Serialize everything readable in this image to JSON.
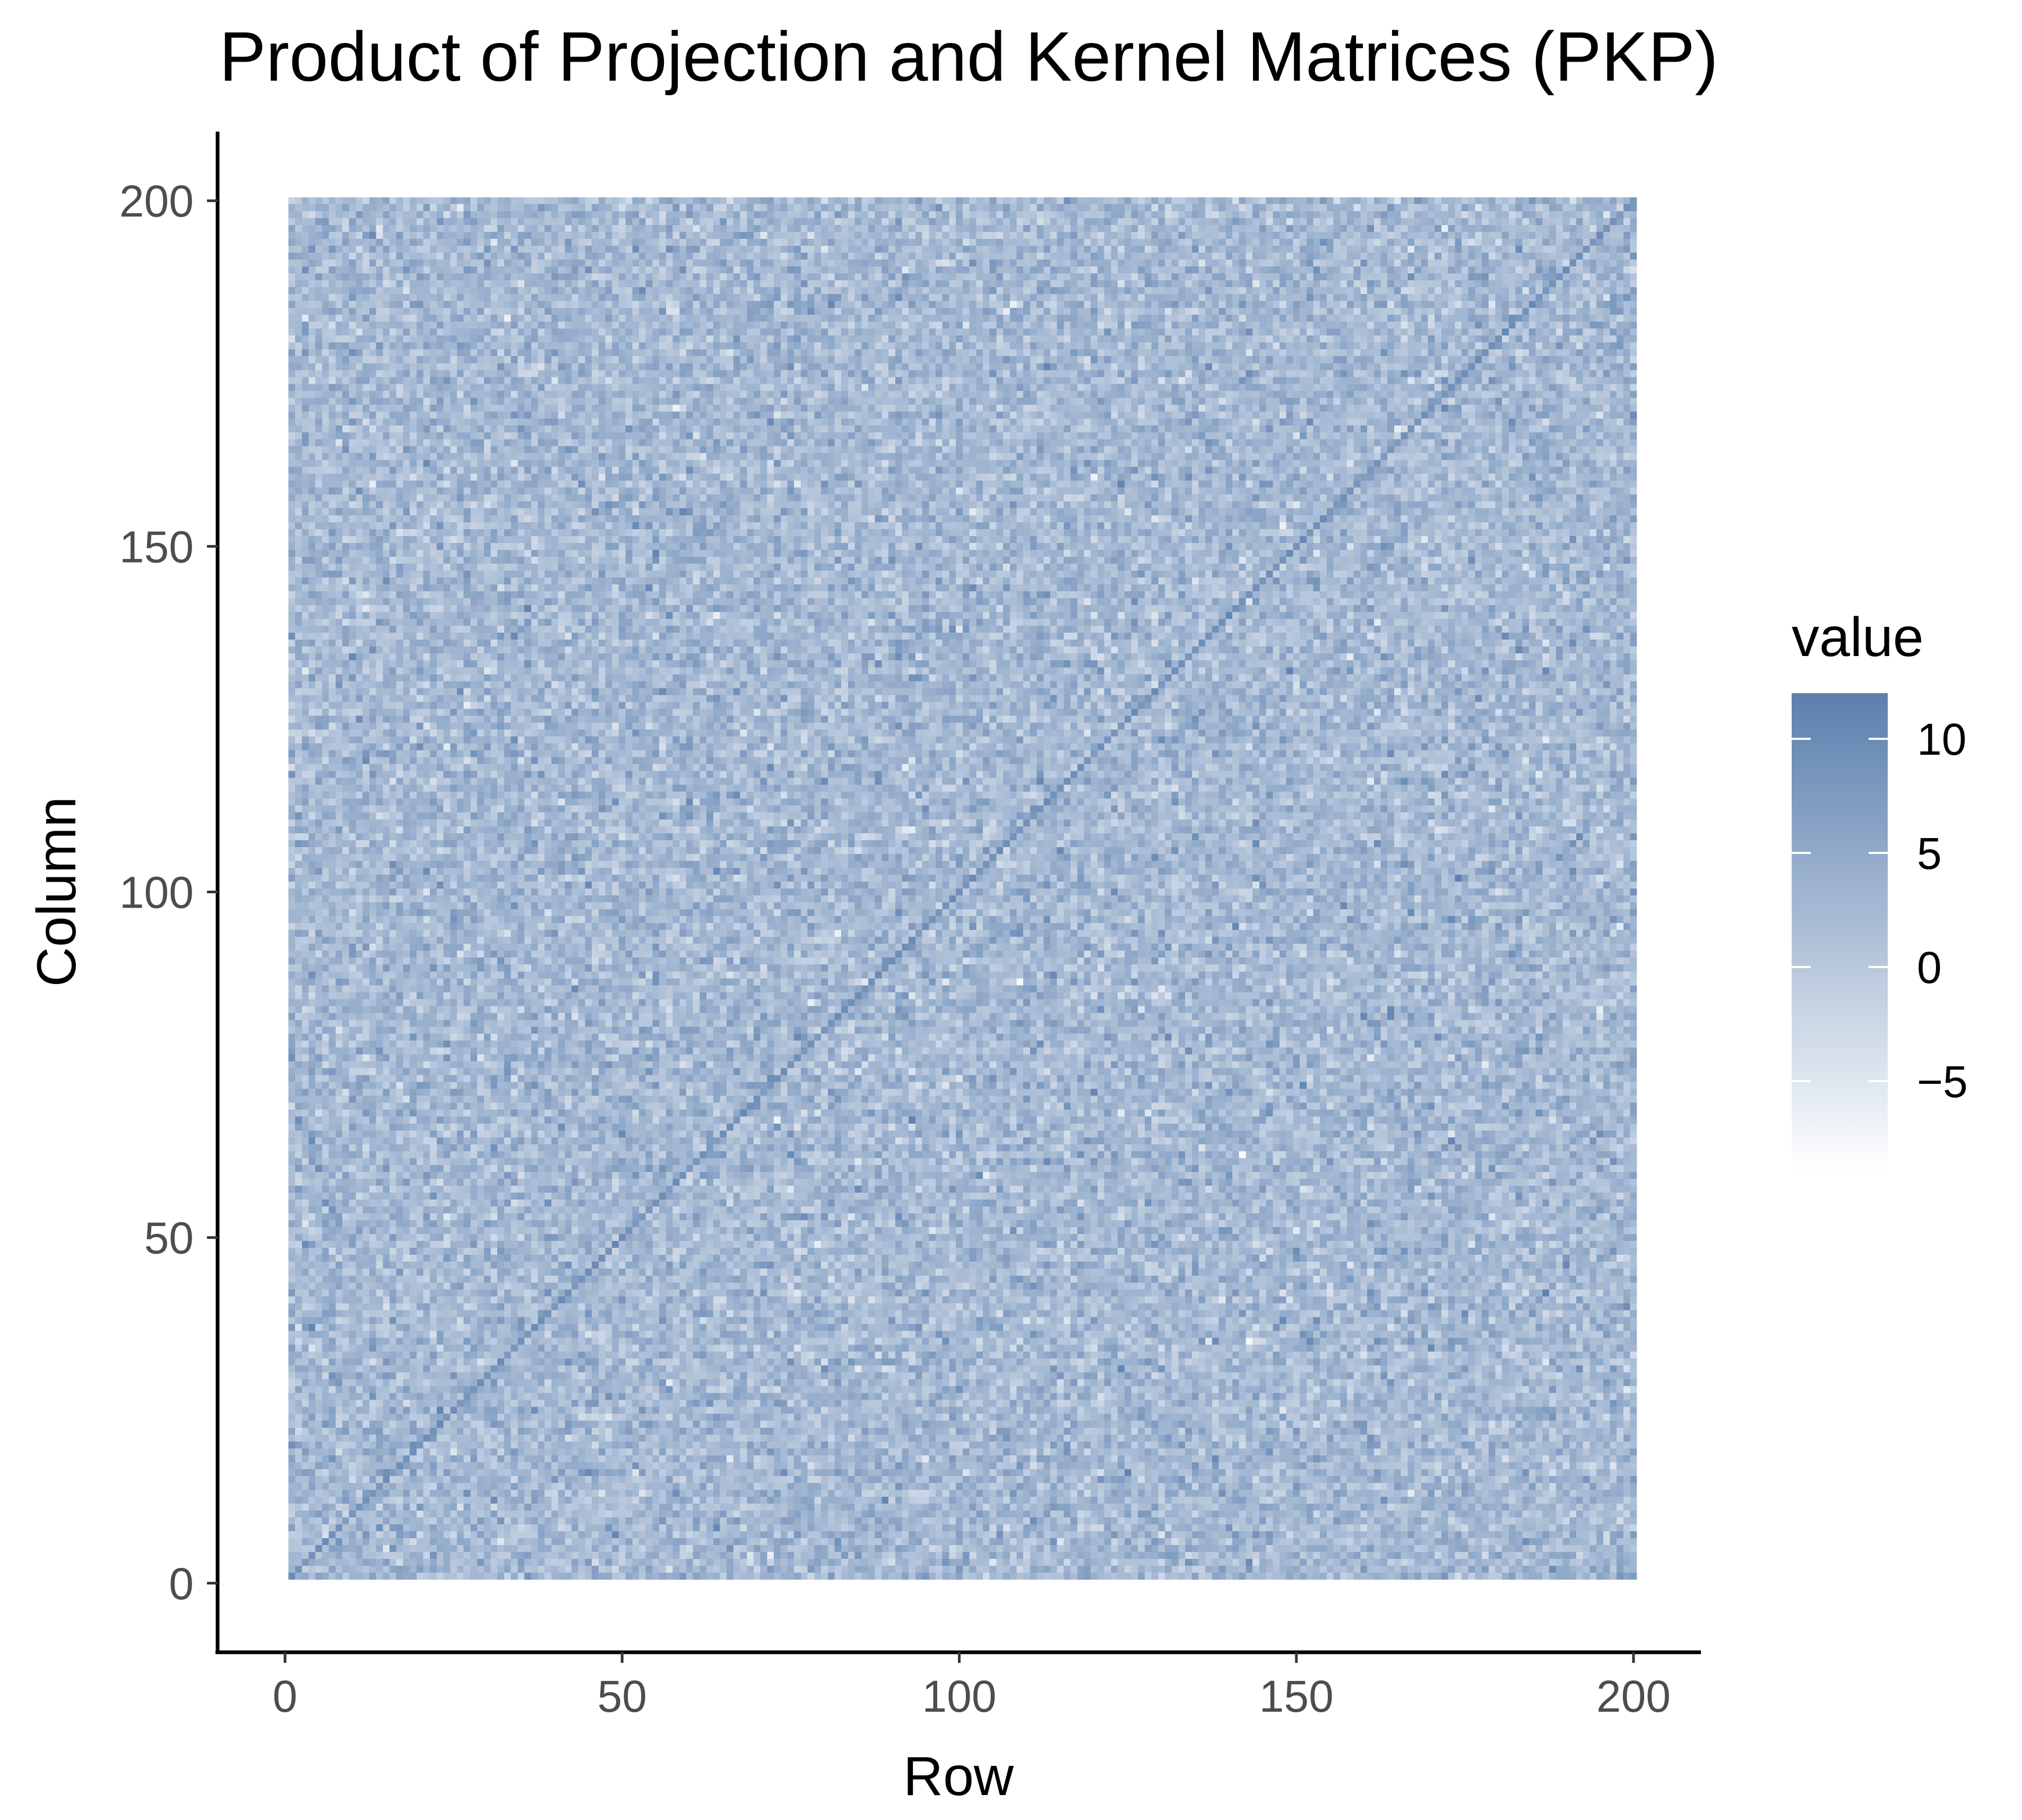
{
  "chart_data": {
    "type": "heatmap",
    "title": "Product of Projection and Kernel Matrices (PKP)",
    "xlabel": "Row",
    "ylabel": "Column",
    "xlim": [
      -10,
      210
    ],
    "ylim": [
      -10,
      210
    ],
    "x_ticks": [
      0,
      50,
      100,
      150,
      200
    ],
    "y_ticks": [
      0,
      50,
      100,
      150,
      200
    ],
    "x_tick_labels": [
      "0",
      "50",
      "100",
      "150",
      "200"
    ],
    "y_tick_labels": [
      "0",
      "50",
      "100",
      "150",
      "200"
    ],
    "grid": false,
    "matrix_size": 200,
    "diagonal_value": 9,
    "off_diagonal_mean": 2.5,
    "off_diagonal_sd": 2.5,
    "value_range": [
      -9,
      12
    ],
    "colors": {
      "low": "#ffffff",
      "high": "#5b7fae"
    },
    "legend": {
      "title": "value",
      "placement": "right",
      "ticks": [
        10,
        5,
        0,
        -5
      ],
      "tick_labels": [
        "10",
        "5",
        "0",
        "−5"
      ]
    }
  }
}
